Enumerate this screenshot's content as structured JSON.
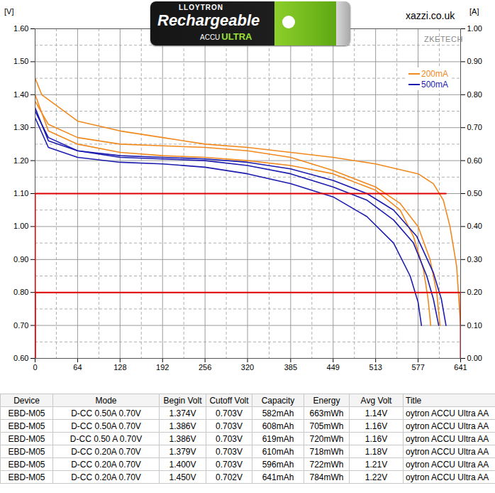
{
  "chart_data": {
    "type": "line",
    "title": "xazzi.co.uk",
    "ylabel": "[V]",
    "y2label": "[A]",
    "annotations": [
      {
        "text": "ZKETECH"
      }
    ],
    "xlim": [
      0,
      641
    ],
    "xticks": [
      0,
      64,
      128,
      192,
      256,
      320,
      385,
      449,
      513,
      577,
      641
    ],
    "ylim": [
      0.6,
      1.6
    ],
    "yticks": [
      {
        "value": 0.6,
        "label": "0.60"
      },
      {
        "value": 0.7,
        "label": "0.70"
      },
      {
        "value": 0.8,
        "label": "0.80"
      },
      {
        "value": 0.9,
        "label": "0.90"
      },
      {
        "value": 1.0,
        "label": "1.00"
      },
      {
        "value": 1.1,
        "label": "1.10"
      },
      {
        "value": 1.2,
        "label": "1.20"
      },
      {
        "value": 1.3,
        "label": "1.30"
      },
      {
        "value": 1.4,
        "label": "1.40"
      },
      {
        "value": 1.5,
        "label": "1.50"
      },
      {
        "value": 1.6,
        "label": "1.60"
      }
    ],
    "y2lim": [
      0,
      1
    ],
    "y2ticks": [
      {
        "value": 0,
        "label": "0.00"
      },
      {
        "value": 0.1,
        "label": "0.10"
      },
      {
        "value": 0.2,
        "label": "0.20"
      },
      {
        "value": 0.3,
        "label": "0.30"
      },
      {
        "value": 0.4,
        "label": "0.40"
      },
      {
        "value": 0.5,
        "label": "0.50"
      },
      {
        "value": 0.6,
        "label": "0.60"
      },
      {
        "value": 0.7,
        "label": "0.70"
      },
      {
        "value": 0.8,
        "label": "0.80"
      },
      {
        "value": 0.9,
        "label": "0.90"
      },
      {
        "value": 1,
        "label": "1.00"
      }
    ],
    "grid": true,
    "legend": "upper right",
    "series": [
      {
        "name": "200mA",
        "color": "#f0891e",
        "x": [
          0,
          10,
          64,
          128,
          192,
          256,
          320,
          385,
          449,
          513,
          577,
          600,
          615,
          625,
          635,
          641
        ],
        "values": [
          1.45,
          1.4,
          1.32,
          1.29,
          1.27,
          1.25,
          1.24,
          1.225,
          1.21,
          1.19,
          1.16,
          1.13,
          1.08,
          1.0,
          0.88,
          0.7
        ]
      },
      {
        "name": "200mA",
        "color": "#f0891e",
        "x": [
          0,
          20,
          64,
          128,
          192,
          256,
          320,
          385,
          449,
          513,
          550,
          577,
          595,
          605,
          610
        ],
        "values": [
          1.38,
          1.31,
          1.27,
          1.25,
          1.245,
          1.24,
          1.23,
          1.21,
          1.17,
          1.12,
          1.07,
          1.0,
          0.9,
          0.8,
          0.7
        ]
      },
      {
        "name": "200mA",
        "color": "#f0891e",
        "x": [
          0,
          20,
          64,
          128,
          192,
          256,
          320,
          385,
          449,
          513,
          550,
          570,
          585,
          592,
          596
        ],
        "values": [
          1.4,
          1.29,
          1.25,
          1.225,
          1.215,
          1.21,
          1.2,
          1.185,
          1.16,
          1.11,
          1.05,
          0.97,
          0.87,
          0.78,
          0.7
        ]
      },
      {
        "name": "500mA",
        "color": "#1c1cb0",
        "x": [
          0,
          20,
          64,
          128,
          192,
          256,
          320,
          385,
          449,
          500,
          540,
          565,
          577,
          582
        ],
        "values": [
          1.33,
          1.24,
          1.21,
          1.195,
          1.19,
          1.18,
          1.16,
          1.13,
          1.09,
          1.03,
          0.95,
          0.85,
          0.77,
          0.7
        ]
      },
      {
        "name": "500mA",
        "color": "#1c1cb0",
        "x": [
          0,
          20,
          64,
          128,
          192,
          256,
          320,
          385,
          449,
          500,
          540,
          570,
          590,
          600,
          608
        ],
        "values": [
          1.35,
          1.27,
          1.23,
          1.21,
          1.205,
          1.2,
          1.185,
          1.16,
          1.12,
          1.08,
          1.02,
          0.95,
          0.85,
          0.78,
          0.7
        ]
      },
      {
        "name": "500mA",
        "color": "#1c1cb0",
        "x": [
          0,
          20,
          64,
          128,
          192,
          256,
          320,
          385,
          449,
          500,
          540,
          575,
          600,
          612,
          619
        ],
        "values": [
          1.36,
          1.26,
          1.23,
          1.215,
          1.21,
          1.205,
          1.195,
          1.175,
          1.14,
          1.1,
          1.05,
          0.97,
          0.86,
          0.78,
          0.7
        ]
      },
      {
        "color": "#e00000",
        "axis": "y2",
        "x": [
          0,
          0,
          619
        ],
        "values": [
          0,
          0.5,
          0.5
        ]
      },
      {
        "color": "#e00000",
        "axis": "y2",
        "x": [
          0,
          0,
          641,
          641
        ],
        "values": [
          0,
          0.2,
          0.2,
          0
        ]
      }
    ]
  },
  "image": {
    "brand": "LLOYTRON",
    "label": "Rechargeable",
    "line1": "ACCU",
    "line2": "ULTRA"
  },
  "table": {
    "columns": [
      "Device",
      "Mode",
      "Begin Volt",
      "Cutoff Volt",
      "Capacity",
      "Energy",
      "Avg Volt",
      "Title"
    ],
    "rows": [
      [
        "EBD-M05",
        "D-CC 0.50A 0.70V",
        "1.374V",
        "0.703V",
        "582mAh",
        "663mWh",
        "1.14V",
        "oytron ACCU Ultra AA"
      ],
      [
        "EBD-M05",
        "D-CC 0.50A 0.70V",
        "1.386V",
        "0.703V",
        "608mAh",
        "705mWh",
        "1.16V",
        "oytron ACCU Ultra AA"
      ],
      [
        "EBD-M05",
        "D-CC 0.50 A 0.70V",
        "1.386V",
        "0.703V",
        "619mAh",
        "720mWh",
        "1.16V",
        "oytron ACCU Ultra AA"
      ],
      [
        "EBD-M05",
        "D-CC 0.20A 0.70V",
        "1.379V",
        "0.703V",
        "610mAh",
        "718mWh",
        "1.18V",
        "oytron ACCU Ultra AA"
      ],
      [
        "EBD-M05",
        "D-CC 0.20A 0.70V",
        "1.400V",
        "0.703V",
        "596mAh",
        "722mWh",
        "1.21V",
        "oytron ACCU Ultra AA"
      ],
      [
        "EBD-M05",
        "D-CC 0.20A 0.70V",
        "1.450V",
        "0.702V",
        "641mAh",
        "784mWh",
        "1.22V",
        "oytron ACCU Ultra AA"
      ]
    ]
  }
}
